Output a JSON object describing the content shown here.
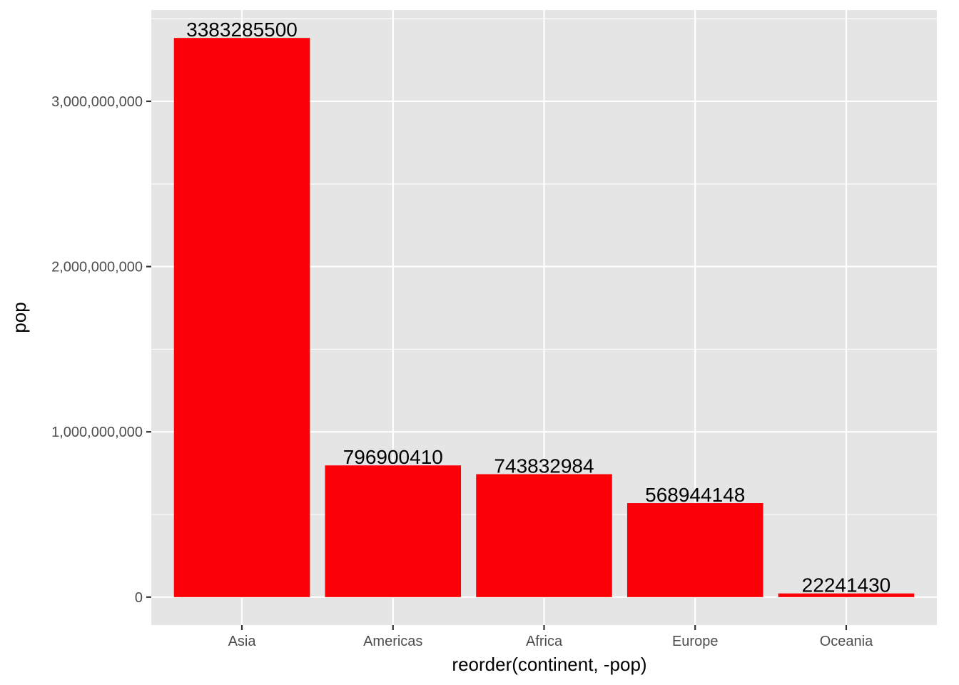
{
  "chart_data": {
    "type": "bar",
    "categories": [
      "Asia",
      "Americas",
      "Africa",
      "Europe",
      "Oceania"
    ],
    "values": [
      3383285500,
      796900410,
      743832984,
      568944148,
      22241430
    ],
    "data_labels": [
      "3383285500",
      "796900410",
      "743832984",
      "568944148",
      "22241430"
    ],
    "title": "",
    "xlabel": "reorder(continent, -pop)",
    "ylabel": "pop",
    "ylim": [
      -169164275,
      3552449775
    ],
    "y_ticks": [
      0,
      1000000000,
      2000000000,
      3000000000
    ],
    "y_tick_labels": [
      "0",
      "1,000,000,000",
      "2,000,000,000",
      "3,000,000,000"
    ],
    "grid": true,
    "legend": "none",
    "colors": {
      "bar": "#fb0007",
      "panel_background": "#e5e5e5",
      "grid": "#ffffff",
      "tick": "#333333",
      "tick_label": "#4d4d4d"
    }
  }
}
